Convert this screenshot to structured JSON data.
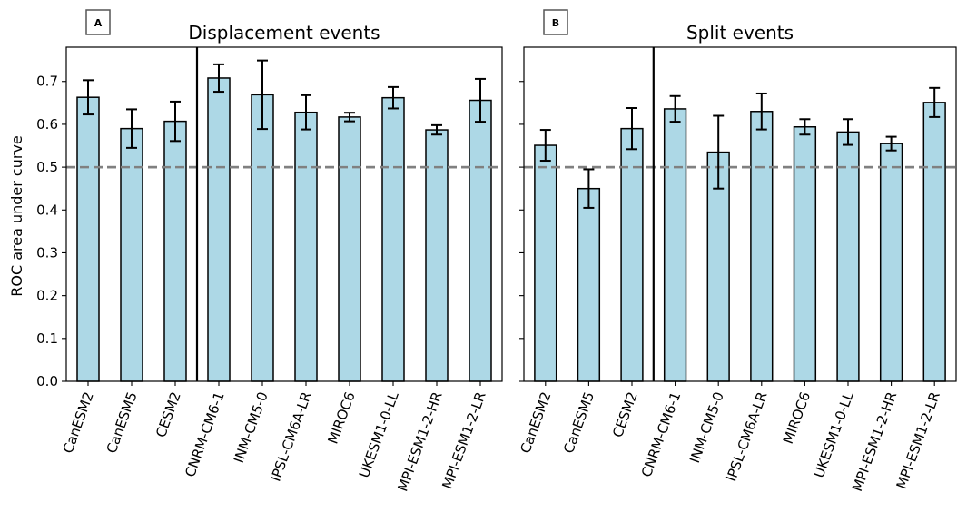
{
  "figure": {
    "ylabel": "ROC area under curve"
  },
  "chart_data": [
    {
      "type": "bar",
      "panel_tag": "A",
      "title": "Displacement events",
      "categories": [
        "CanESM2",
        "CanESM5",
        "CESM2",
        "CNRM-CM6-1",
        "INM-CM5-0",
        "IPSL-CM6A-LR",
        "MIROC6",
        "UKESM1-0-LL",
        "MPI-ESM1-2-HR",
        "MPI-ESM1-2-LR"
      ],
      "values": [
        0.663,
        0.59,
        0.607,
        0.708,
        0.669,
        0.628,
        0.617,
        0.662,
        0.587,
        0.656
      ],
      "errors": [
        0.04,
        0.045,
        0.046,
        0.032,
        0.08,
        0.04,
        0.01,
        0.025,
        0.011,
        0.05
      ],
      "reference_line": 0.5,
      "group_separator_after_index": 2,
      "ylim": [
        0,
        0.78
      ],
      "yticks": [
        "0.0",
        "0.1",
        "0.2",
        "0.3",
        "0.4",
        "0.5",
        "0.6",
        "0.7"
      ],
      "show_ytick_labels": true
    },
    {
      "type": "bar",
      "panel_tag": "B",
      "title": "Split events",
      "categories": [
        "CanESM2",
        "CanESM5",
        "CESM2",
        "CNRM-CM6-1",
        "INM-CM5-0",
        "IPSL-CM6A-LR",
        "MIROC6",
        "UKESM1-0-LL",
        "MPI-ESM1-2-HR",
        "MPI-ESM1-2-LR"
      ],
      "values": [
        0.551,
        0.45,
        0.59,
        0.636,
        0.535,
        0.63,
        0.594,
        0.582,
        0.555,
        0.651
      ],
      "errors": [
        0.036,
        0.045,
        0.048,
        0.03,
        0.085,
        0.042,
        0.018,
        0.03,
        0.016,
        0.034
      ],
      "reference_line": 0.5,
      "group_separator_after_index": 2,
      "ylim": [
        0,
        0.78
      ],
      "yticks": [
        "0.0",
        "0.1",
        "0.2",
        "0.3",
        "0.4",
        "0.5",
        "0.6",
        "0.7"
      ],
      "show_ytick_labels": false
    }
  ]
}
